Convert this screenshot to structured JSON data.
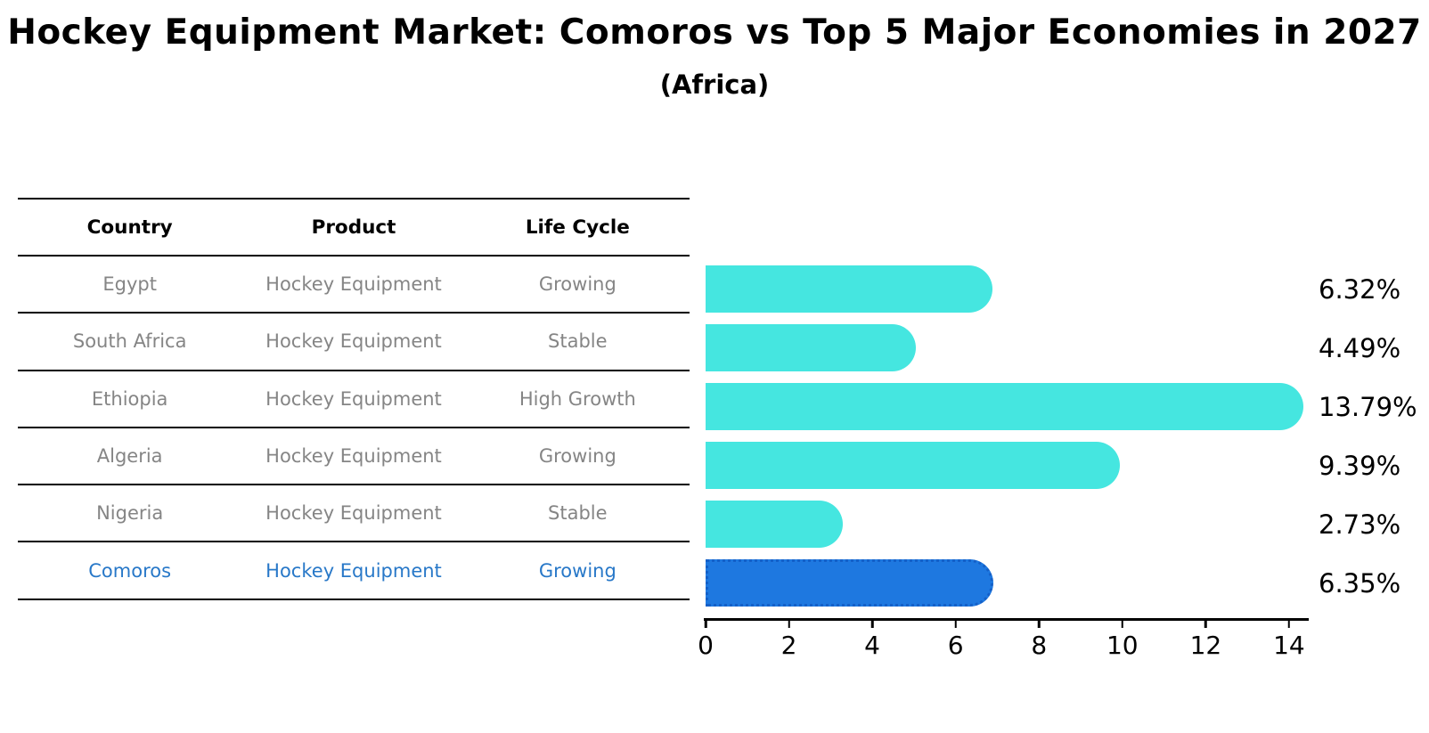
{
  "page": {
    "title": "Hockey Equipment Market: Comoros vs Top 5 Major Economies in 2027",
    "subtitle": "(Africa)"
  },
  "table": {
    "headers": {
      "country": "Country",
      "product": "Product",
      "life_cycle": "Life Cycle"
    },
    "rows": [
      {
        "country": "Egypt",
        "product": "Hockey Equipment",
        "life_cycle": "Growing",
        "highlight": false
      },
      {
        "country": "South Africa",
        "product": "Hockey Equipment",
        "life_cycle": "Stable",
        "highlight": false
      },
      {
        "country": "Ethiopia",
        "product": "Hockey Equipment",
        "life_cycle": "High Growth",
        "highlight": false
      },
      {
        "country": "Algeria",
        "product": "Hockey Equipment",
        "life_cycle": "Growing",
        "highlight": false
      },
      {
        "country": "Nigeria",
        "product": "Hockey Equipment",
        "life_cycle": "Stable",
        "highlight": false
      },
      {
        "country": "Comoros",
        "product": "Hockey Equipment",
        "life_cycle": "Growing",
        "highlight": true
      }
    ]
  },
  "chart_data": {
    "type": "bar",
    "orientation": "horizontal",
    "title": "Hockey Equipment Market: Comoros vs Top 5 Major Economies in 2027",
    "subtitle": "(Africa)",
    "xlabel": "",
    "ylabel": "",
    "categories": [
      "Egypt",
      "South Africa",
      "Ethiopia",
      "Algeria",
      "Nigeria",
      "Comoros"
    ],
    "values": [
      6.32,
      4.49,
      13.79,
      9.39,
      2.73,
      6.35
    ],
    "value_labels": [
      "6.32%",
      "4.49%",
      "13.79%",
      "9.39%",
      "2.73%",
      "6.35%"
    ],
    "highlight_category": "Comoros",
    "highlight_index": 5,
    "xlim": [
      0,
      14.45
    ],
    "x_ticks": [
      0,
      2,
      4,
      6,
      8,
      10,
      12,
      14
    ],
    "grid": false,
    "legend": false
  },
  "colors": {
    "bar": "#45E6E0",
    "highlight_bar": "#1E78E0",
    "highlight_border": "#1460C8",
    "row_text": "#858585",
    "highlight_text": "#2878C8",
    "axis": "#000000",
    "background": "#FFFFFF"
  }
}
